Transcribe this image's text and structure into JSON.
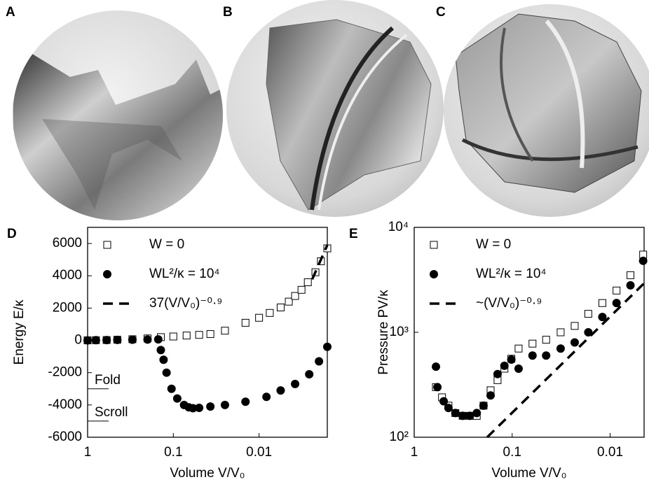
{
  "panel_labels": [
    "A",
    "B",
    "C"
  ],
  "chart_data": [
    {
      "type": "scatter",
      "panel_label": "D",
      "xlabel": "Volume  V/V₀",
      "ylabel": "Energy  E/κ",
      "xscale": "log",
      "yscale": "linear",
      "xlim": [
        1,
        0.0016
      ],
      "xticks": [
        1,
        0.1,
        0.01
      ],
      "ylim": [
        -6000,
        7000
      ],
      "yticks": [
        -6000,
        -4000,
        -2000,
        0,
        2000,
        4000,
        6000
      ],
      "series": [
        {
          "name": "W = 0",
          "marker": "square",
          "color": "#000000",
          "x": [
            1,
            0.8,
            0.6,
            0.45,
            0.3,
            0.2,
            0.14,
            0.1,
            0.07,
            0.05,
            0.037,
            0.025,
            0.0144,
            0.01,
            0.0075,
            0.0056,
            0.0045,
            0.0038,
            0.0032,
            0.0027,
            0.0022,
            0.0019,
            0.0016
          ],
          "values": [
            0,
            10,
            20,
            40,
            70,
            120,
            200,
            240,
            300,
            340,
            390,
            600,
            1090,
            1400,
            1700,
            2040,
            2400,
            2750,
            3130,
            3600,
            4220,
            4900,
            5700
          ]
        },
        {
          "name": "WL²/κ = 10⁴",
          "marker": "circle",
          "color": "#000000",
          "x": [
            1,
            0.8,
            0.6,
            0.45,
            0.3,
            0.2,
            0.15,
            0.14,
            0.13,
            0.12,
            0.105,
            0.09,
            0.075,
            0.066,
            0.059,
            0.05,
            0.037,
            0.025,
            0.0144,
            0.0082,
            0.0056,
            0.0038,
            0.0026,
            0.002,
            0.0016
          ],
          "values": [
            0,
            10,
            20,
            30,
            40,
            50,
            60,
            -600,
            -1200,
            -2000,
            -3000,
            -3600,
            -4000,
            -4150,
            -4200,
            -4180,
            -4100,
            -4000,
            -3800,
            -3500,
            -3100,
            -2700,
            -2100,
            -1300,
            -400
          ]
        },
        {
          "name": "37(V/V₀)⁻⁰·⁹",
          "marker": "dashed",
          "color": "#000000",
          "x": [
            0.0024,
            0.0016
          ],
          "values": [
            3780,
            5900
          ]
        }
      ],
      "annotations": [
        {
          "text": "Fold",
          "y": -3000
        },
        {
          "text": "Scroll",
          "y": -5000
        }
      ]
    },
    {
      "type": "scatter",
      "panel_label": "E",
      "xlabel": "Volume  V/V₀",
      "ylabel": "Pressure  PV/κ",
      "xscale": "log",
      "yscale": "log",
      "xlim": [
        1,
        0.0045
      ],
      "xticks": [
        1,
        0.1,
        0.01
      ],
      "ylim": [
        100,
        10000
      ],
      "yticks": [
        {
          "value": 100,
          "label": "10²"
        },
        {
          "value": 1000,
          "label": "10³"
        },
        {
          "value": 10000,
          "label": "10⁴"
        }
      ],
      "series": [
        {
          "name": "W = 0",
          "marker": "square",
          "color": "#000000",
          "x": [
            0.6,
            0.52,
            0.447,
            0.38,
            0.32,
            0.27,
            0.23,
            0.196,
            0.166,
            0.141,
            0.12,
            0.102,
            0.086,
            0.062,
            0.045,
            0.032,
            0.023,
            0.0167,
            0.012,
            0.0086,
            0.0062,
            0.0046
          ],
          "values": [
            300,
            240,
            200,
            170,
            160,
            160,
            160,
            200,
            280,
            350,
            450,
            560,
            700,
            780,
            850,
            1000,
            1150,
            1500,
            1900,
            2500,
            3500,
            5500
          ]
        },
        {
          "name": "WL²/κ = 10⁴",
          "marker": "circle",
          "color": "#000000",
          "x": [
            0.6,
            0.58,
            0.5,
            0.447,
            0.38,
            0.32,
            0.27,
            0.23,
            0.196,
            0.166,
            0.141,
            0.12,
            0.102,
            0.086,
            0.062,
            0.045,
            0.032,
            0.023,
            0.0167,
            0.012,
            0.0086,
            0.0062,
            0.0046
          ],
          "values": [
            470,
            300,
            220,
            190,
            170,
            160,
            160,
            170,
            200,
            250,
            400,
            480,
            550,
            450,
            600,
            600,
            700,
            800,
            1000,
            1400,
            1900,
            2800,
            4800
          ]
        },
        {
          "name": "~(V/V₀)⁻⁰·⁹",
          "marker": "dashed",
          "color": "#000000",
          "x": [
            0.18,
            0.0045
          ],
          "values": [
            100,
            2930
          ]
        }
      ]
    }
  ]
}
